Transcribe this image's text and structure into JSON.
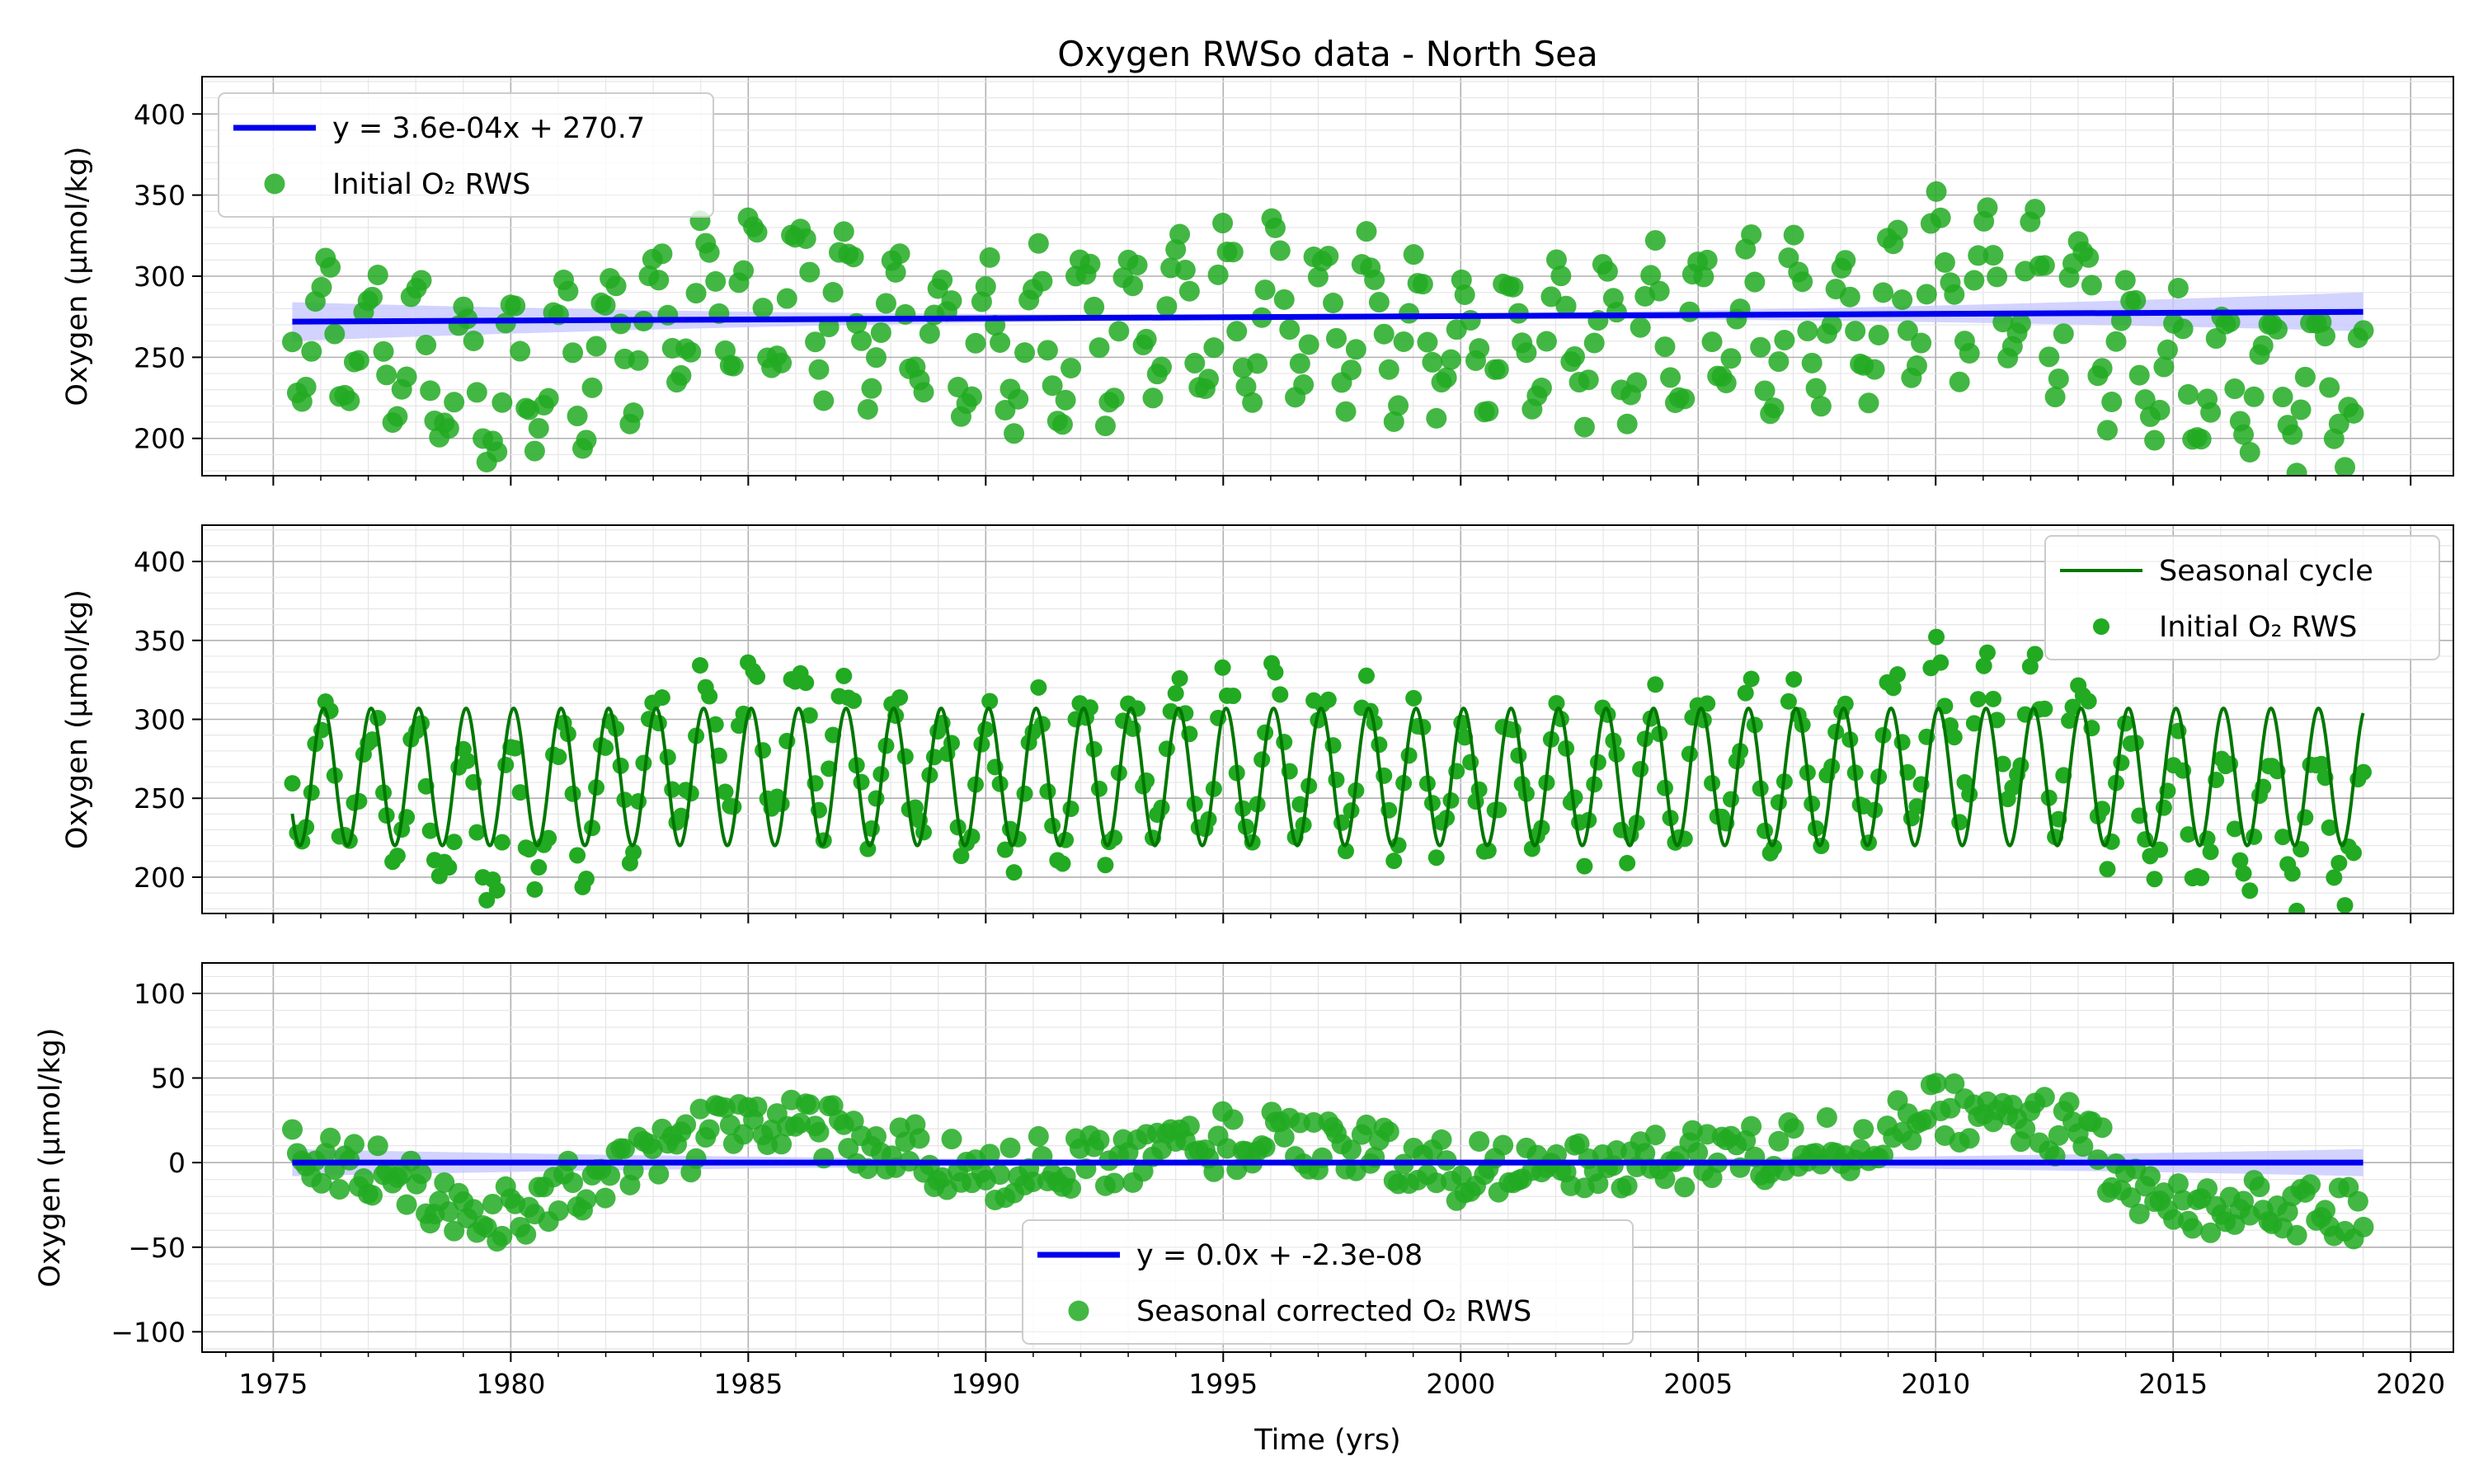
{
  "figure": {
    "title": "Oxygen RWSo data - North Sea",
    "xlabel": "Time (yrs)"
  },
  "colors": {
    "trend": "#0000ee",
    "trend_band": "#c8c8ff",
    "points": "#22aa22",
    "seasonal": "#007700",
    "grid": "#bfbfbf"
  },
  "chart_data": [
    {
      "type": "scatter",
      "title": "Oxygen RWSo data - North Sea",
      "ylabel": "Oxygen (µmol/kg)",
      "xlim": [
        1973.5,
        2020.9
      ],
      "ylim": [
        177,
        423
      ],
      "xticks": [
        1975,
        1980,
        1985,
        1990,
        1995,
        2000,
        2005,
        2010,
        2015,
        2020
      ],
      "yticks": [
        200,
        250,
        300,
        350,
        400
      ],
      "grid": true,
      "legend_position": "upper-left",
      "series": [
        {
          "name": "y = 3.6e-04x + 270.7",
          "kind": "trend-line",
          "x": [
            1975.4,
            2019.0
          ],
          "y": [
            272.0,
            278.0
          ]
        },
        {
          "name": "Initial O₂ RWS",
          "kind": "points",
          "baseline": 275,
          "amplitude": 40,
          "x_range": [
            1975.4,
            2019.0
          ]
        }
      ]
    },
    {
      "type": "line",
      "ylabel": "Oxygen (µmol/kg)",
      "xlim": [
        1973.5,
        2020.9
      ],
      "ylim": [
        177,
        423
      ],
      "yticks": [
        200,
        250,
        300,
        350,
        400
      ],
      "grid": true,
      "legend_position": "upper-right",
      "series": [
        {
          "name": "Seasonal cycle",
          "kind": "seasonal-line",
          "min": 220,
          "max": 307,
          "x_range": [
            1975.4,
            2019.0
          ]
        },
        {
          "name": "Initial O₂ RWS",
          "kind": "points"
        }
      ]
    },
    {
      "type": "scatter",
      "ylabel": "Oxygen (µmol/kg)",
      "xlim": [
        1973.5,
        2020.9
      ],
      "ylim": [
        -112,
        118
      ],
      "xticks": [
        1975,
        1980,
        1985,
        1990,
        1995,
        2000,
        2005,
        2010,
        2015,
        2020
      ],
      "yticks": [
        -100,
        -50,
        0,
        50,
        100
      ],
      "grid": true,
      "legend_position": "lower-center",
      "series": [
        {
          "name": "y = 0.0x + -2.3e-08",
          "kind": "trend-line",
          "x": [
            1975.4,
            2019.0
          ],
          "y": [
            0,
            0
          ]
        },
        {
          "name": "Seasonal corrected O₂ RWS",
          "kind": "points"
        }
      ],
      "anomaly_profile": [
        [
          1975.4,
          5
        ],
        [
          1977,
          -5
        ],
        [
          1979,
          -25
        ],
        [
          1980,
          -32
        ],
        [
          1981,
          -15
        ],
        [
          1982.5,
          -5
        ],
        [
          1984,
          15
        ],
        [
          1986,
          25
        ],
        [
          1988,
          10
        ],
        [
          1990,
          -5
        ],
        [
          1992,
          0
        ],
        [
          1994,
          10
        ],
        [
          1996,
          15
        ],
        [
          1998,
          5
        ],
        [
          2000,
          -5
        ],
        [
          2003,
          0
        ],
        [
          2006,
          5
        ],
        [
          2008,
          10
        ],
        [
          2010,
          30
        ],
        [
          2011.5,
          30
        ],
        [
          2013.3,
          15
        ],
        [
          2014,
          -20
        ],
        [
          2016,
          -25
        ],
        [
          2019,
          -30
        ]
      ]
    }
  ]
}
